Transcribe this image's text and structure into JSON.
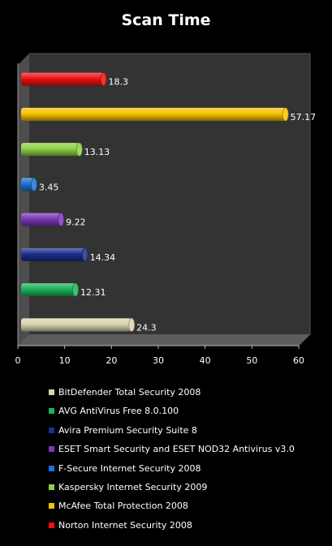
{
  "chart_data": {
    "type": "bar",
    "orientation": "horizontal",
    "title": "Scan Time",
    "xlim": [
      0,
      60
    ],
    "x_ticks": [
      "0",
      "10",
      "20",
      "30",
      "40",
      "50",
      "60"
    ],
    "grid": false,
    "legend_position": "bottom",
    "categories": [
      "BitDefender Total Security 2008",
      "AVG AntiVirus Free 8.0.100",
      "Avira Premium Security Suite 8",
      "ESET Smart Security and ESET  NOD32 Antivirus v3.0",
      "F-Secure Internet Security 2008",
      "Kaspersky Internet Security 2009",
      "McAfee Total Protection 2008",
      "Norton Internet Security 2008"
    ],
    "values": [
      24.3,
      12.31,
      14.34,
      9.22,
      3.45,
      13.13,
      57.17,
      18.3
    ],
    "value_labels": [
      "24.3",
      "12.31",
      "14.34",
      "9.22",
      "3.45",
      "13.13",
      "57.17",
      "18.3"
    ],
    "colors": [
      "#d9d4b0",
      "#1fb35a",
      "#1a2f8c",
      "#7a36b8",
      "#1874d2",
      "#8fd046",
      "#f7c200",
      "#ee1111"
    ]
  }
}
